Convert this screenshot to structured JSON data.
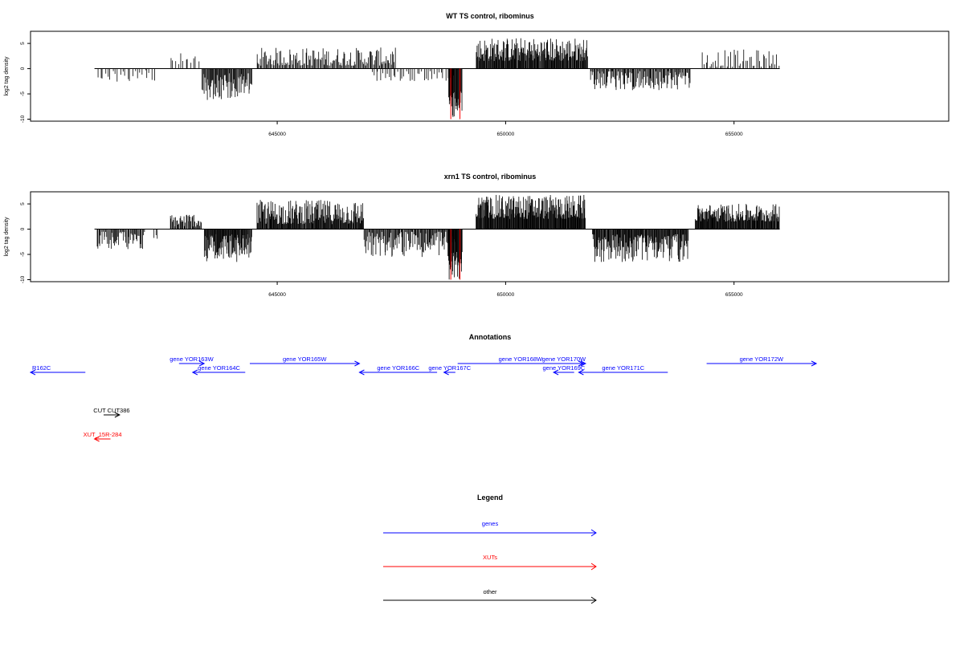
{
  "colors": {
    "gene": "#0000ff",
    "xut": "#ff0000",
    "other": "#000000",
    "highlight": "#ff0000",
    "track": "#000000"
  },
  "chart_data": [
    {
      "type": "bar",
      "title": "WT TS control, ribominus",
      "ylabel": "log2 tag density",
      "xlim": [
        639600,
        659700
      ],
      "ylim": [
        -10.4,
        7.4
      ],
      "xticks": [
        645000,
        650000,
        655000
      ],
      "xtick_labels": [
        "645000",
        "650000",
        "655000"
      ],
      "yticks": [
        -10,
        -5,
        0,
        5
      ],
      "ytick_labels": [
        "-10",
        "-5",
        "0",
        "5"
      ],
      "baseline": [
        641000,
        656000
      ],
      "segments": [
        {
          "start": 641050,
          "end": 642350,
          "min": -2.8,
          "max": -0.3,
          "count": 24,
          "dir": -1
        },
        {
          "start": 642650,
          "end": 643300,
          "min": 0.4,
          "max": 3.2,
          "count": 12,
          "dir": 1
        },
        {
          "start": 643350,
          "end": 644450,
          "min": -6.2,
          "max": -0.8,
          "count": 70,
          "dir": -1
        },
        {
          "start": 644550,
          "end": 647600,
          "min": 0.6,
          "max": 4.2,
          "count": 140,
          "dir": 1
        },
        {
          "start": 647050,
          "end": 648950,
          "min": -2.6,
          "max": -0.4,
          "count": 40,
          "dir": -1
        },
        {
          "start": 648750,
          "end": 649050,
          "min": -10.0,
          "max": -4.5,
          "count": 28,
          "dir": -1
        },
        {
          "start": 649350,
          "end": 651800,
          "min": 1.5,
          "max": 6.2,
          "count": 200,
          "dir": 1
        },
        {
          "start": 651850,
          "end": 654050,
          "min": -4.3,
          "max": -0.5,
          "count": 120,
          "dir": -1
        },
        {
          "start": 654300,
          "end": 656000,
          "min": 0.4,
          "max": 3.8,
          "count": 45,
          "dir": 1
        }
      ],
      "highlights": [
        {
          "x": 648800,
          "y": -10.0
        },
        {
          "x": 649000,
          "y": -10.0
        }
      ]
    },
    {
      "type": "bar",
      "title": "xrn1 TS control, ribominus",
      "ylabel": "log2 tag density",
      "xlim": [
        639600,
        659700
      ],
      "ylim": [
        -10.4,
        7.4
      ],
      "xticks": [
        645000,
        650000,
        655000
      ],
      "xtick_labels": [
        "645000",
        "650000",
        "655000"
      ],
      "yticks": [
        -10,
        -5,
        0,
        5
      ],
      "ytick_labels": [
        "-10",
        "-5",
        "0",
        "5"
      ],
      "baseline": [
        641000,
        656000
      ],
      "segments": [
        {
          "start": 641050,
          "end": 642100,
          "min": -4.0,
          "max": -0.5,
          "count": 55,
          "dir": -1
        },
        {
          "start": 642300,
          "end": 642400,
          "min": -2.0,
          "max": -0.5,
          "count": 3,
          "dir": -1
        },
        {
          "start": 642650,
          "end": 643350,
          "min": 0.5,
          "max": 3.3,
          "count": 40,
          "dir": 1
        },
        {
          "start": 643400,
          "end": 644450,
          "min": -6.5,
          "max": -1.0,
          "count": 90,
          "dir": -1
        },
        {
          "start": 644550,
          "end": 646900,
          "min": 1.0,
          "max": 5.8,
          "count": 190,
          "dir": 1
        },
        {
          "start": 646900,
          "end": 648900,
          "min": -5.5,
          "max": -0.5,
          "count": 120,
          "dir": -1
        },
        {
          "start": 648750,
          "end": 649050,
          "min": -10.0,
          "max": -4.5,
          "count": 30,
          "dir": -1
        },
        {
          "start": 649350,
          "end": 651750,
          "min": 2.0,
          "max": 6.8,
          "count": 220,
          "dir": 1
        },
        {
          "start": 651900,
          "end": 654000,
          "min": -6.5,
          "max": -1.0,
          "count": 170,
          "dir": -1
        },
        {
          "start": 654150,
          "end": 656000,
          "min": 1.5,
          "max": 5.0,
          "count": 160,
          "dir": 1
        }
      ],
      "highlights": [
        {
          "x": 648800,
          "y": -10.0
        },
        {
          "x": 649000,
          "y": -10.0
        }
      ]
    }
  ],
  "annotations": {
    "title": "Annotations",
    "features": [
      {
        "label": "R162C",
        "start": 639600,
        "end": 640800,
        "strand": "-",
        "row": 1,
        "kind": "gene"
      },
      {
        "label": "gene YOR163W",
        "start": 642850,
        "end": 643400,
        "strand": "+",
        "row": 0,
        "kind": "gene"
      },
      {
        "label": "gene YOR164C",
        "start": 643150,
        "end": 644300,
        "strand": "-",
        "row": 1,
        "kind": "gene"
      },
      {
        "label": "gene YOR165W",
        "start": 644400,
        "end": 646800,
        "strand": "+",
        "row": 0,
        "kind": "gene"
      },
      {
        "label": "gene YOR166C",
        "start": 646800,
        "end": 648500,
        "strand": "-",
        "row": 1,
        "kind": "gene"
      },
      {
        "label": "gene YOR167C",
        "start": 648650,
        "end": 648900,
        "strand": "-",
        "row": 1,
        "kind": "gene"
      },
      {
        "label": "gene YOR168W",
        "start": 648950,
        "end": 651700,
        "strand": "+",
        "row": 0,
        "kind": "gene"
      },
      {
        "label": "gene YOR169C",
        "start": 651050,
        "end": 651500,
        "strand": "-",
        "row": 1,
        "kind": "gene"
      },
      {
        "label": "gene YOR170W",
        "start": 650800,
        "end": 651750,
        "strand": "+",
        "row": 0,
        "kind": "gene"
      },
      {
        "label": "gene YOR171C",
        "start": 651600,
        "end": 653550,
        "strand": "-",
        "row": 1,
        "kind": "gene"
      },
      {
        "label": "gene YOR172W",
        "start": 654400,
        "end": 656800,
        "strand": "+",
        "row": 0,
        "kind": "gene"
      },
      {
        "label": "CUT CUT386",
        "start": 641200,
        "end": 641550,
        "strand": "+",
        "row": 2,
        "kind": "other"
      },
      {
        "label": "XUT_15R-284",
        "start": 641000,
        "end": 641350,
        "strand": "-",
        "row": 3,
        "kind": "xut"
      }
    ]
  },
  "legend": {
    "title": "Legend",
    "items": [
      {
        "label": "genes",
        "kind": "gene"
      },
      {
        "label": "XUTs",
        "kind": "xut"
      },
      {
        "label": "other",
        "kind": "other"
      }
    ]
  }
}
